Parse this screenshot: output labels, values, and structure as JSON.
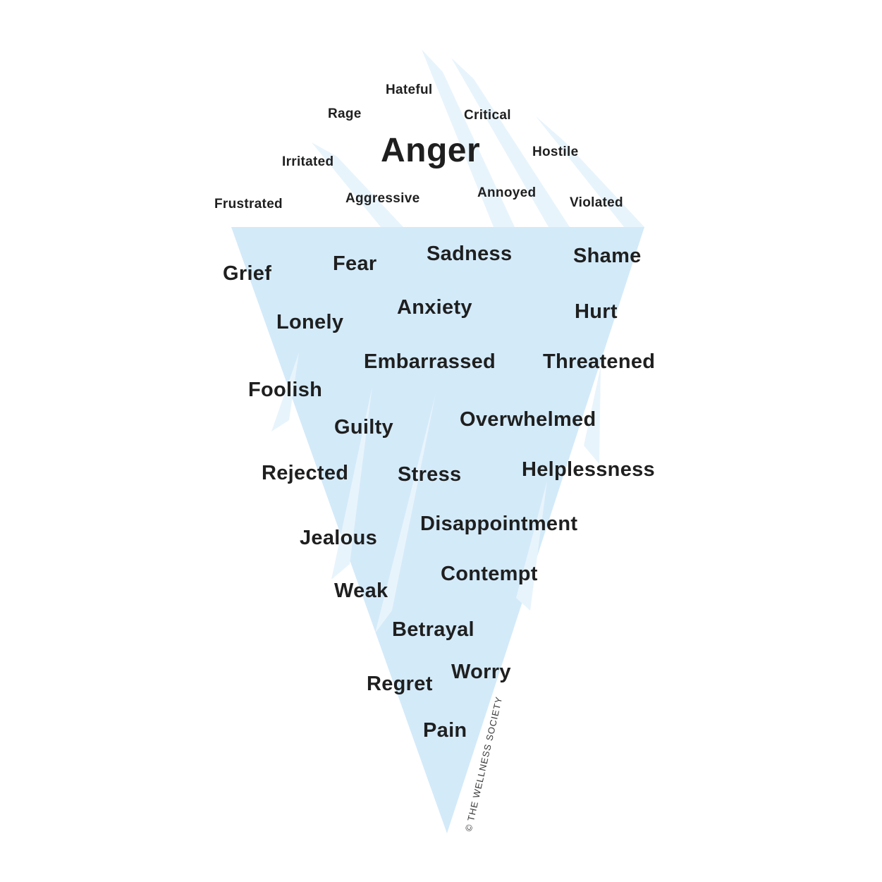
{
  "surface_words": [
    "Hateful",
    "Rage",
    "Critical",
    "Anger",
    "Hostile",
    "Irritated",
    "Aggressive",
    "Annoyed",
    "Frustrated",
    "Violated"
  ],
  "below_words": [
    "Grief",
    "Fear",
    "Sadness",
    "Shame",
    "Lonely",
    "Anxiety",
    "Hurt",
    "Embarrassed",
    "Threatened",
    "Foolish",
    "Guilty",
    "Overwhelmed",
    "Rejected",
    "Stress",
    "Helplessness",
    "Jealous",
    "Disappointment",
    "Weak",
    "Contempt",
    "Betrayal",
    "Regret",
    "Worry",
    "Pain"
  ],
  "credit": "© THE WELLNESS SOCIETY",
  "colors": {
    "ice_main": "#d3eaf9",
    "ice_highlight": "#e8f4fc",
    "text": "#1f1f1f"
  }
}
